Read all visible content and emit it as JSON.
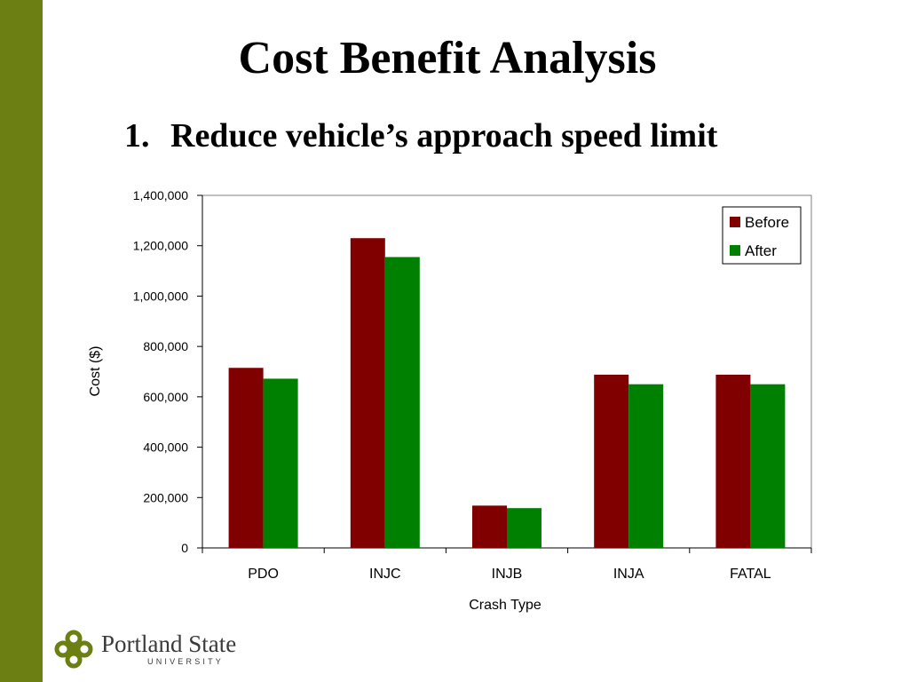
{
  "slide": {
    "title": "Cost Benefit Analysis",
    "subtitle_number": "1.",
    "subtitle_text": "Reduce vehicle’s approach speed limit",
    "accent_color": "#6b7f12"
  },
  "logo": {
    "line1": "Portland State",
    "line2": "UNIVERSITY",
    "icon": "psu-logo-icon",
    "color": "#6b7f12"
  },
  "chart_data": {
    "type": "bar",
    "categories": [
      "PDO",
      "INJC",
      "INJB",
      "INJA",
      "FATAL"
    ],
    "series": [
      {
        "name": "Before",
        "color": "#800000",
        "values": [
          715000,
          1230000,
          168000,
          688000,
          688000
        ]
      },
      {
        "name": "After",
        "color": "#008000",
        "values": [
          672000,
          1155000,
          158000,
          650000,
          650000
        ]
      }
    ],
    "xlabel": "Crash Type",
    "ylabel": "Cost ($)",
    "ylim": [
      0,
      1400000
    ],
    "yticks": [
      0,
      200000,
      400000,
      600000,
      800000,
      1000000,
      1200000,
      1400000
    ],
    "ytick_labels": [
      "0",
      "200,000",
      "400,000",
      "600,000",
      "800,000",
      "1,000,000",
      "1,200,000",
      "1,400,000"
    ],
    "grid": false,
    "legend_position": "top-right"
  }
}
